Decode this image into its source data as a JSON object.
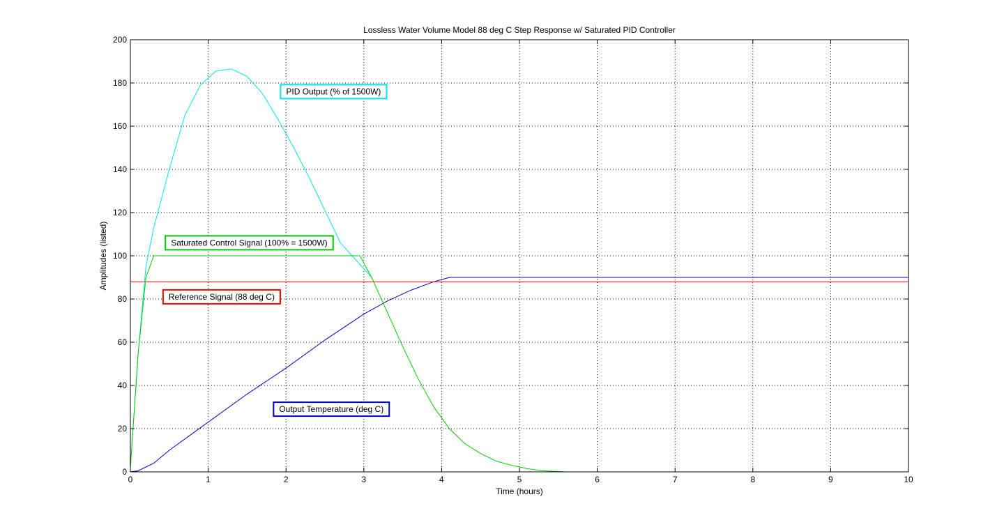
{
  "chart_data": {
    "type": "line",
    "title": "Lossless Water Volume Model 88 deg C Step Response w/ Saturated PID Controller",
    "xlabel": "Time (hours)",
    "ylabel": "Amplitudes (listed)",
    "xlim": [
      0,
      10
    ],
    "ylim": [
      0,
      200
    ],
    "xticks": [
      0,
      1,
      2,
      3,
      4,
      5,
      6,
      7,
      8,
      9,
      10
    ],
    "yticks": [
      0,
      20,
      40,
      60,
      80,
      100,
      120,
      140,
      160,
      180,
      200
    ],
    "grid": true,
    "series": [
      {
        "name": "PID Output (% of 1500W)",
        "color": "#00e5ee",
        "x": [
          0,
          0.1,
          0.2,
          0.3,
          0.5,
          0.7,
          0.9,
          1.1,
          1.3,
          1.5,
          1.7,
          1.9,
          2.1,
          2.3,
          2.5,
          2.7,
          2.9,
          3.1
        ],
        "y": [
          2,
          55,
          95,
          113,
          140,
          165,
          179,
          185.5,
          186.5,
          183,
          175,
          163,
          150,
          136,
          121,
          106,
          98,
          90
        ]
      },
      {
        "name": "Saturated Control Signal (100% = 1500W)",
        "color": "#00cc00",
        "x": [
          0,
          0.1,
          0.2,
          0.3,
          1,
          2,
          2.95,
          3.1,
          3.3,
          3.5,
          3.7,
          3.9,
          4.1,
          4.3,
          4.5,
          4.7,
          4.9,
          5.1,
          5.3,
          5.6,
          6,
          7,
          8,
          9,
          10
        ],
        "y": [
          2,
          55,
          90,
          100,
          100,
          100,
          100,
          90,
          74,
          58,
          43,
          30,
          20,
          13,
          8.5,
          5,
          3,
          1.5,
          0.5,
          0,
          0,
          0,
          0,
          0,
          0
        ]
      },
      {
        "name": "Reference Signal (88 deg C)",
        "color": "#ff0000",
        "x": [
          0,
          10
        ],
        "y": [
          88,
          88
        ]
      },
      {
        "name": "Output Temperature (deg C)",
        "color": "#0000cc",
        "x": [
          0,
          0.1,
          0.3,
          0.5,
          1,
          1.5,
          2,
          2.5,
          3,
          3.3,
          3.6,
          3.9,
          4.05,
          4.1,
          5,
          6,
          7,
          8,
          9,
          10
        ],
        "y": [
          0,
          0.5,
          4,
          10,
          23,
          36,
          48,
          61,
          73,
          79,
          84,
          88,
          89.5,
          90,
          90,
          90,
          90,
          90,
          90,
          90
        ]
      }
    ],
    "annotations": [
      {
        "text": "PID Output (% of 1500W)",
        "color": "#00e5ee",
        "x": 1.93,
        "y": 176
      },
      {
        "text": "Saturated Control Signal (100% = 1500W)",
        "color": "#00cc00",
        "x": 0.45,
        "y": 106
      },
      {
        "text": "Reference Signal (88 deg C)",
        "color": "#ff0000",
        "x": 0.42,
        "y": 81
      },
      {
        "text": "Output Temperature (deg C)",
        "color": "#0000cc",
        "x": 1.84,
        "y": 29
      }
    ]
  }
}
